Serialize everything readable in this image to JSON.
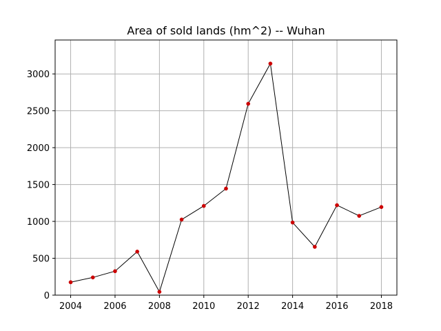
{
  "chart_data": {
    "type": "line",
    "title": "Area of sold lands (hm^2) -- Wuhan",
    "xlabel": "",
    "ylabel": "",
    "x": [
      2004,
      2005,
      2006,
      2007,
      2008,
      2009,
      2010,
      2011,
      2012,
      2013,
      2014,
      2015,
      2016,
      2017,
      2018
    ],
    "series": [
      {
        "values": [
          175,
          240,
          325,
          590,
          45,
          1025,
          1210,
          1445,
          2595,
          3140,
          985,
          655,
          1220,
          1075,
          1195
        ]
      }
    ],
    "xlim": [
      2003.3,
      2018.7
    ],
    "ylim": [
      0,
      3460
    ],
    "xticks": [
      2004,
      2006,
      2008,
      2010,
      2012,
      2014,
      2016,
      2018
    ],
    "yticks": [
      0,
      500,
      1000,
      1500,
      2000,
      2500,
      3000
    ],
    "grid": true,
    "line_color": "#000000",
    "marker_color": "#cc0000",
    "grid_color": "#b0b0b0"
  }
}
